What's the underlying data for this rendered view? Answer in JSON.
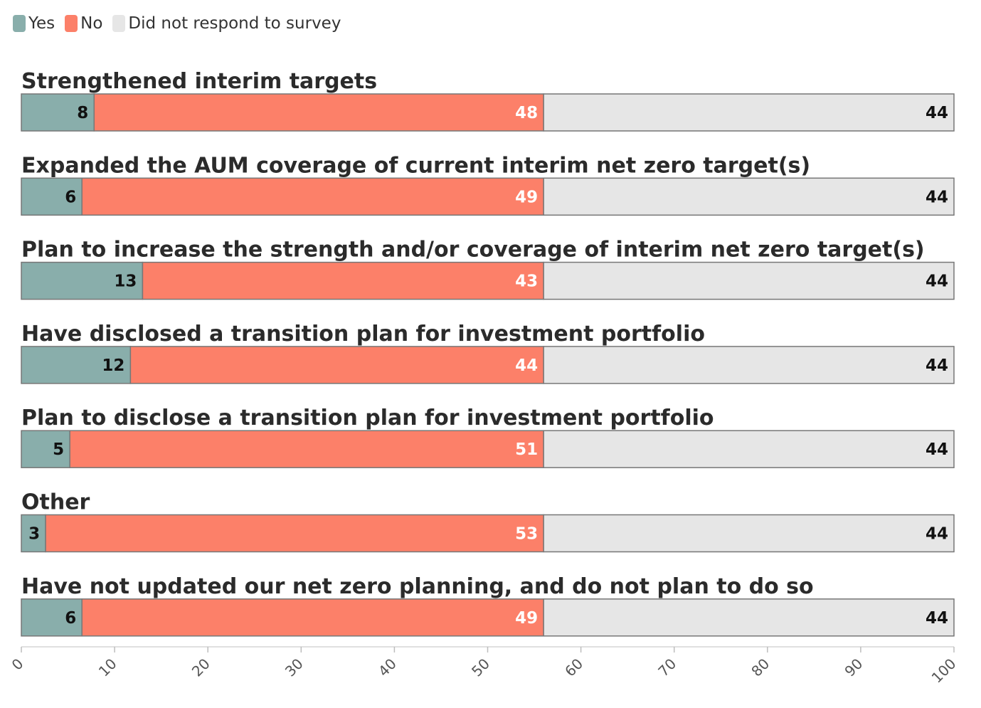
{
  "chart_data": {
    "type": "bar",
    "orientation": "horizontal",
    "stacked": true,
    "categories": [
      "Strengthened  interim targets",
      "Expanded the AUM coverage of current interim net zero target(s)",
      "Plan to increase the strength and/or coverage of interim net zero target(s)",
      "Have disclosed a transition plan for investment portfolio",
      "Plan to disclose a transition plan for investment portfolio",
      "Other",
      "Have not updated our net zero planning, and do not plan to do so"
    ],
    "series": [
      {
        "name": "Yes",
        "color": "#89aeab",
        "label_color": "#111111",
        "values": [
          8,
          6,
          13,
          12,
          5,
          3,
          6
        ],
        "positions": [
          7.8,
          6.5,
          13.0,
          11.7,
          5.2,
          2.6,
          6.5
        ]
      },
      {
        "name": "No",
        "color": "#fc8069",
        "label_color": "#ffffff",
        "values": [
          48,
          49,
          43,
          44,
          51,
          53,
          49
        ],
        "positions": [
          48.2,
          49.5,
          43.0,
          44.3,
          50.8,
          53.4,
          49.5
        ]
      },
      {
        "name": "Did not respond to survey",
        "color": "#e6e6e6",
        "label_color": "#111111",
        "values": [
          44,
          44,
          44,
          44,
          44,
          44,
          44
        ],
        "positions": [
          44.0,
          44.0,
          44.0,
          44.0,
          44.0,
          44.0,
          44.0
        ]
      }
    ],
    "xlim": [
      0,
      100
    ],
    "xticks": [
      0,
      10,
      20,
      30,
      40,
      50,
      60,
      70,
      80,
      90,
      100
    ],
    "legend_position": "top-left",
    "grid": false
  }
}
